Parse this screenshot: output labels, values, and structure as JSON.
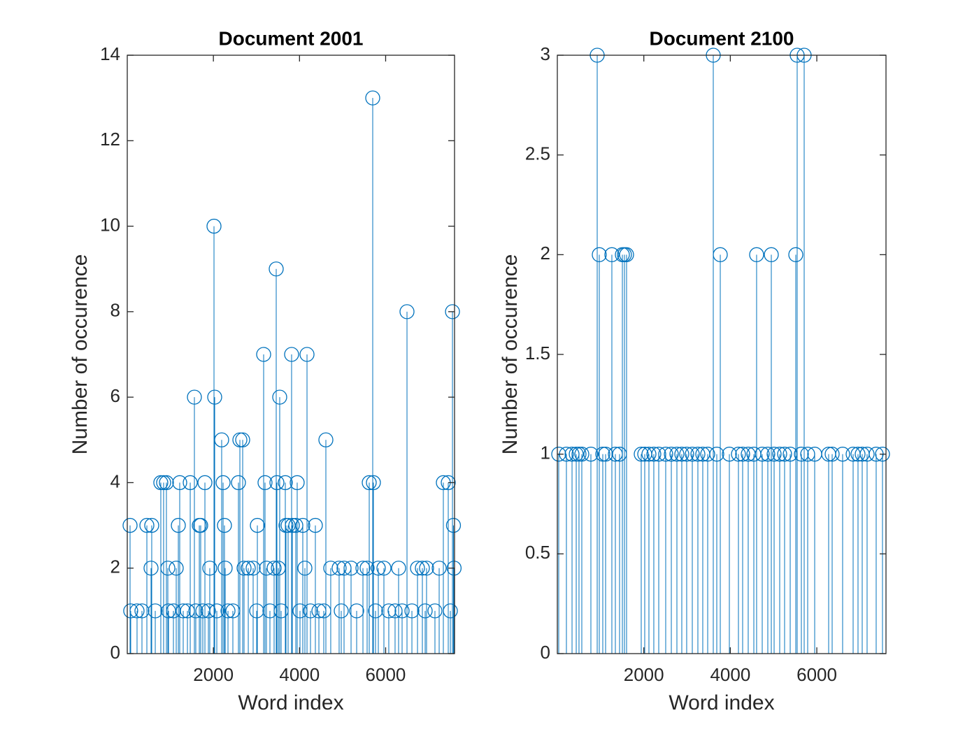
{
  "chart_data": [
    {
      "type": "stem",
      "title": "Document 2001",
      "xlabel": "Word index",
      "ylabel": "Number of occurence",
      "color": "#0072BD",
      "xlim": [
        0,
        7600
      ],
      "ylim": [
        0,
        14
      ],
      "xticks": [
        2000,
        4000,
        6000
      ],
      "yticks": [
        0,
        2,
        4,
        6,
        8,
        10,
        12,
        14
      ],
      "x": [
        65,
        80,
        227,
        341,
        455,
        552,
        568,
        650,
        779,
        844,
        909,
        942,
        958,
        1072,
        1137,
        1186,
        1218,
        1299,
        1397,
        1462,
        1559,
        1591,
        1673,
        1705,
        1754,
        1803,
        1884,
        1916,
        2014,
        2030,
        2079,
        2192,
        2225,
        2257,
        2273,
        2339,
        2452,
        2582,
        2615,
        2680,
        2712,
        2810,
        2923,
        3005,
        3021,
        3167,
        3199,
        3232,
        3313,
        3410,
        3459,
        3475,
        3508,
        3540,
        3573,
        3670,
        3686,
        3735,
        3816,
        3833,
        3914,
        3946,
        4011,
        4076,
        4125,
        4174,
        4255,
        4368,
        4450,
        4563,
        4612,
        4725,
        4920,
        4969,
        5034,
        5197,
        5327,
        5473,
        5570,
        5619,
        5700,
        5716,
        5765,
        5830,
        5960,
        6073,
        6219,
        6301,
        6382,
        6496,
        6610,
        6740,
        6853,
        6918,
        6950,
        7145,
        7243,
        7340,
        7454,
        7503,
        7552,
        7575,
        7590
      ],
      "values": [
        3,
        1,
        1,
        1,
        3,
        2,
        3,
        1,
        4,
        4,
        4,
        2,
        1,
        1,
        2,
        3,
        4,
        1,
        1,
        4,
        6,
        1,
        3,
        3,
        1,
        4,
        1,
        2,
        10,
        6,
        1,
        5,
        4,
        3,
        2,
        1,
        1,
        4,
        5,
        5,
        2,
        2,
        2,
        1,
        3,
        7,
        4,
        2,
        1,
        2,
        9,
        4,
        2,
        6,
        1,
        4,
        3,
        3,
        7,
        3,
        3,
        4,
        1,
        3,
        2,
        7,
        1,
        3,
        1,
        1,
        5,
        2,
        2,
        1,
        2,
        2,
        1,
        2,
        2,
        4,
        13,
        4,
        1,
        2,
        2,
        1,
        1,
        2,
        1,
        8,
        1,
        2,
        2,
        1,
        2,
        1,
        2,
        4,
        4,
        1,
        8,
        3,
        2
      ]
    },
    {
      "type": "stem",
      "title": "Document 2100",
      "xlabel": "Word index",
      "ylabel": "Number of occurence",
      "color": "#0072BD",
      "xlim": [
        0,
        7600
      ],
      "ylim": [
        0,
        3
      ],
      "xticks": [
        2000,
        4000,
        6000
      ],
      "yticks": [
        0,
        0.5,
        1,
        1.5,
        2,
        2.5,
        3
      ],
      "x": [
        32,
        210,
        340,
        437,
        501,
        566,
        776,
        922,
        970,
        1051,
        1116,
        1261,
        1342,
        1439,
        1504,
        1552,
        1601,
        1940,
        2021,
        2118,
        2231,
        2345,
        2506,
        2636,
        2765,
        2878,
        2991,
        3121,
        3250,
        3363,
        3477,
        3606,
        3687,
        3768,
        3978,
        4188,
        4285,
        4414,
        4544,
        4608,
        4738,
        4867,
        4948,
        5013,
        5142,
        5255,
        5385,
        5514,
        5546,
        5643,
        5708,
        5789,
        5951,
        6274,
        6355,
        6597,
        6840,
        6953,
        7050,
        7163,
        7373,
        7519
      ],
      "values": [
        1,
        1,
        1,
        1,
        1,
        1,
        1,
        3,
        2,
        1,
        1,
        2,
        1,
        1,
        2,
        2,
        2,
        1,
        1,
        1,
        1,
        1,
        1,
        1,
        1,
        1,
        1,
        1,
        1,
        1,
        1,
        3,
        1,
        2,
        1,
        1,
        1,
        1,
        1,
        2,
        1,
        1,
        2,
        1,
        1,
        1,
        1,
        2,
        3,
        1,
        3,
        1,
        1,
        1,
        1,
        1,
        1,
        1,
        1,
        1,
        1,
        1
      ]
    }
  ]
}
